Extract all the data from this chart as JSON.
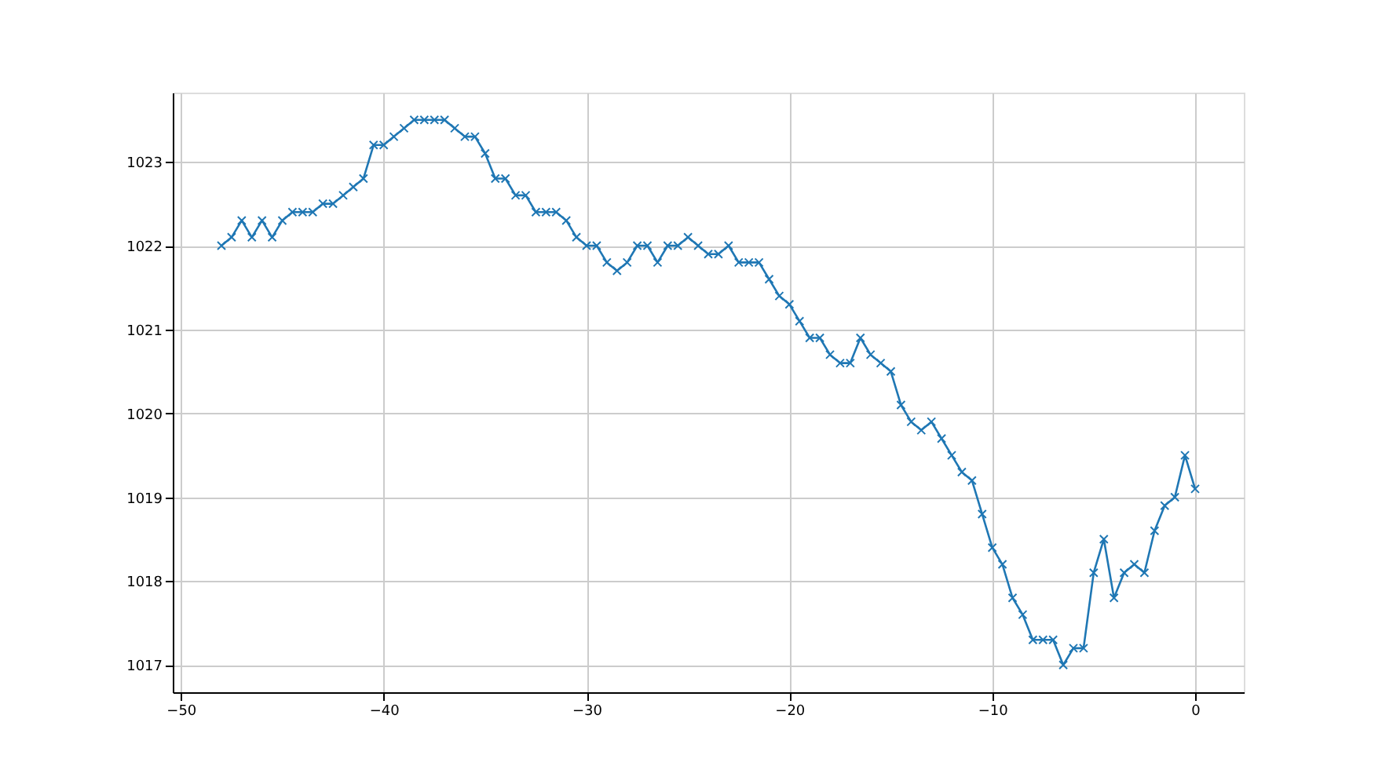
{
  "chart_data": {
    "type": "line",
    "x": [
      -48,
      -47.5,
      -47,
      -46.5,
      -46,
      -45.5,
      -45,
      -44.5,
      -44,
      -43.5,
      -43,
      -42.5,
      -42,
      -41.5,
      -41,
      -40.5,
      -40,
      -39.5,
      -39,
      -38.5,
      -38,
      -37.5,
      -37,
      -36.5,
      -36,
      -35.5,
      -35,
      -34.5,
      -34,
      -33.5,
      -33,
      -32.5,
      -32,
      -31.5,
      -31,
      -30.5,
      -30,
      -29.5,
      -29,
      -28.5,
      -28,
      -27.5,
      -27,
      -26.5,
      -26,
      -25.5,
      -25,
      -24.5,
      -24,
      -23.5,
      -23,
      -22.5,
      -22,
      -21.5,
      -21,
      -20.5,
      -20,
      -19.5,
      -19,
      -18.5,
      -18,
      -17.5,
      -17,
      -16.5,
      -16,
      -15.5,
      -15,
      -14.5,
      -14,
      -13.5,
      -13,
      -12.5,
      -12,
      -11.5,
      -11,
      -10.5,
      -10,
      -9.5,
      -9,
      -8.5,
      -8,
      -7.5,
      -7,
      -6.5,
      -6,
      -5.5,
      -5,
      -4.5,
      -4,
      -3.5,
      -3,
      -2.5,
      -2,
      -1.5,
      -1,
      -0.5,
      0
    ],
    "series": [
      {
        "color": "#1f77b4",
        "values": [
          1022.0,
          1022.1,
          1022.3,
          1022.1,
          1022.3,
          1022.1,
          1022.3,
          1022.4,
          1022.4,
          1022.4,
          1022.5,
          1022.5,
          1022.6,
          1022.7,
          1022.8,
          1023.2,
          1023.2,
          1023.3,
          1023.4,
          1023.5,
          1023.5,
          1023.5,
          1023.5,
          1023.4,
          1023.3,
          1023.3,
          1023.1,
          1022.8,
          1022.8,
          1022.6,
          1022.6,
          1022.4,
          1022.4,
          1022.4,
          1022.3,
          1022.1,
          1022.0,
          1022.0,
          1021.8,
          1021.7,
          1021.8,
          1022.0,
          1022.0,
          1021.8,
          1022.0,
          1022.0,
          1022.1,
          1022.0,
          1021.9,
          1021.9,
          1022.0,
          1021.8,
          1021.8,
          1021.8,
          1021.6,
          1021.4,
          1021.3,
          1021.1,
          1020.9,
          1020.9,
          1020.7,
          1020.6,
          1020.6,
          1020.9,
          1020.7,
          1020.6,
          1020.5,
          1020.1,
          1019.9,
          1019.8,
          1019.9,
          1019.7,
          1019.5,
          1019.3,
          1019.2,
          1018.8,
          1018.4,
          1018.2,
          1017.8,
          1017.6,
          1017.3,
          1017.3,
          1017.3,
          1017.0,
          1017.2,
          1017.2,
          1018.1,
          1018.5,
          1017.8,
          1018.1,
          1018.2,
          1018.1,
          1018.6,
          1018.9,
          1019.0,
          1019.5,
          1019.1
        ]
      }
    ],
    "xlim": [
      -50.4,
      2.4
    ],
    "ylim": [
      1016.675,
      1023.825
    ],
    "xticks": [
      -50,
      -40,
      -30,
      -20,
      -10,
      0
    ],
    "yticks": [
      1017,
      1018,
      1019,
      1020,
      1021,
      1022,
      1023
    ],
    "grid": true,
    "marker": "cross",
    "line_style": "solid"
  }
}
